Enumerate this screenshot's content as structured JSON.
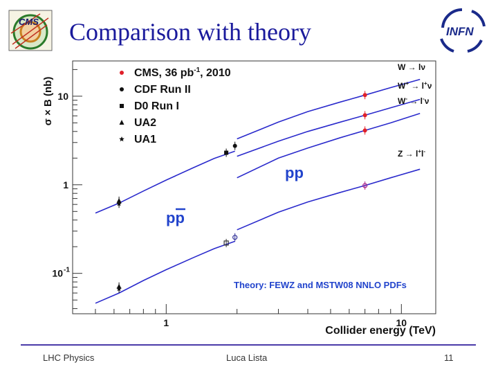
{
  "slide": {
    "title": "Comparison with theory",
    "footer_left": "LHC Physics",
    "footer_center": "Luca Lista",
    "footer_right": "11"
  },
  "logos": {
    "left": {
      "name": "cms-logo",
      "text": "CMS"
    },
    "right": {
      "name": "infn-logo",
      "text": "INFN"
    }
  },
  "colors": {
    "title": "#1a1a9c",
    "theory_curve": "#2a2acc",
    "cms_points": "#e0202a",
    "annotation_blue": "#2244cc",
    "footer_line": "#4a3aa8"
  },
  "chart_data": {
    "type": "scatter",
    "xlabel": "Collider energy (TeV)",
    "ylabel": "σ × B (nb)",
    "x_scale": "log",
    "y_scale": "log",
    "xlim": [
      0.4,
      14
    ],
    "ylim": [
      0.035,
      25
    ],
    "x_tick_labels": [
      {
        "value": 1,
        "label": "1"
      },
      {
        "value": 10,
        "label": "10"
      }
    ],
    "y_tick_labels": [
      {
        "value": 0.1,
        "label": "10",
        "sup": "-1"
      },
      {
        "value": 1,
        "label": "1"
      },
      {
        "value": 10,
        "label": "10"
      }
    ],
    "legend": [
      {
        "label": "CMS, 36 pb",
        "sup": "-1",
        "suffix": ", 2010",
        "marker": "dot",
        "color": "#e0202a"
      },
      {
        "label": "CDF Run II",
        "marker": "dot",
        "color": "#111111"
      },
      {
        "label": "D0 Run I",
        "marker": "square",
        "color": "#111111"
      },
      {
        "label": "UA2",
        "marker": "triangle",
        "color": "#111111"
      },
      {
        "label": "UA1",
        "marker": "star",
        "color": "#111111"
      }
    ],
    "theory_note": "Theory: FEWZ and MSTW08 NNLO PDFs",
    "region_labels": [
      {
        "label": "pp",
        "anti": false
      },
      {
        "label": "pp",
        "anti": true
      }
    ],
    "curve_labels": [
      {
        "name": "W → lν",
        "base": "W → lν",
        "sup": ""
      },
      {
        "name": "W+ → l+ν",
        "base": "W",
        "sup": "+",
        "rest": " → l",
        "sup2": "+",
        "rest2": "ν"
      },
      {
        "name": "W- → l-ν",
        "base": "W",
        "sup": "-",
        "rest": " → l",
        "sup2": "-",
        "rest2": "ν"
      },
      {
        "name": "Z → l+l-",
        "base": "Z → l",
        "sup": "+",
        "rest": "l",
        "sup2": "-",
        "rest2": ""
      }
    ],
    "theory_series": [
      {
        "name": "W → lν (pp̄)",
        "x": [
          0.5,
          0.63,
          0.8,
          1.0,
          1.3,
          1.6,
          1.96
        ],
        "y": [
          0.48,
          0.62,
          0.85,
          1.13,
          1.55,
          1.98,
          2.4
        ]
      },
      {
        "name": "W → lν (pp)",
        "x": [
          2.0,
          3.0,
          4.0,
          5.5,
          7.0,
          9.0,
          12.0
        ],
        "y": [
          3.3,
          5.1,
          6.7,
          8.6,
          10.3,
          12.5,
          15.5
        ]
      },
      {
        "name": "W+ → l+ν (pp)",
        "x": [
          2.0,
          3.0,
          4.0,
          5.5,
          7.0,
          9.0,
          12.0
        ],
        "y": [
          2.1,
          3.1,
          4.0,
          5.1,
          6.1,
          7.4,
          9.2
        ]
      },
      {
        "name": "W- → l-ν (pp)",
        "x": [
          2.0,
          3.0,
          4.0,
          5.5,
          7.0,
          9.0,
          12.0
        ],
        "y": [
          1.2,
          2.0,
          2.6,
          3.4,
          4.1,
          5.0,
          6.4
        ]
      },
      {
        "name": "Z → l+l- (pp̄)",
        "x": [
          0.5,
          0.63,
          0.8,
          1.0,
          1.3,
          1.6,
          1.96
        ],
        "y": [
          0.046,
          0.06,
          0.083,
          0.11,
          0.15,
          0.19,
          0.23
        ]
      },
      {
        "name": "Z → l+l- (pp)",
        "x": [
          2.0,
          3.0,
          4.0,
          5.5,
          7.0,
          9.0,
          12.0
        ],
        "y": [
          0.31,
          0.49,
          0.64,
          0.82,
          0.98,
          1.2,
          1.5
        ]
      }
    ],
    "measurements": [
      {
        "experiment": "CMS, 36 pb-1, 2010",
        "channel": "W → lν",
        "marker": "dot",
        "x": 7.0,
        "y": 10.3,
        "color": "#e0202a"
      },
      {
        "experiment": "CMS, 36 pb-1, 2010",
        "channel": "W+ → l+ν",
        "marker": "dot",
        "x": 7.0,
        "y": 6.1,
        "color": "#e0202a"
      },
      {
        "experiment": "CMS, 36 pb-1, 2010",
        "channel": "W- → l-ν",
        "marker": "dot",
        "x": 7.0,
        "y": 4.1,
        "color": "#e0202a"
      },
      {
        "experiment": "CMS, 36 pb-1, 2010",
        "channel": "Z → l+l-",
        "marker": "open-circle",
        "x": 7.0,
        "y": 0.98,
        "color": "#aa2288"
      },
      {
        "experiment": "CDF Run II",
        "channel": "W → lν",
        "marker": "dot",
        "x": 1.96,
        "y": 2.75,
        "color": "#111111"
      },
      {
        "experiment": "CDF Run II",
        "channel": "Z → l+l-",
        "marker": "open-circle",
        "x": 1.96,
        "y": 0.255,
        "color": "#333399"
      },
      {
        "experiment": "D0 Run I",
        "channel": "W → lν",
        "marker": "square",
        "x": 1.8,
        "y": 2.3,
        "color": "#111111"
      },
      {
        "experiment": "D0 Run I",
        "channel": "Z → l+l-",
        "marker": "open-square",
        "x": 1.8,
        "y": 0.22,
        "color": "#333333"
      },
      {
        "experiment": "UA2",
        "channel": "W → lν",
        "marker": "triangle",
        "x": 0.63,
        "y": 0.66,
        "color": "#111111"
      },
      {
        "experiment": "UA2",
        "channel": "Z → l+l-",
        "marker": "triangle",
        "x": 0.63,
        "y": 0.071,
        "color": "#111111"
      },
      {
        "experiment": "UA1",
        "channel": "W → lν",
        "marker": "star",
        "x": 0.63,
        "y": 0.61,
        "color": "#111111"
      },
      {
        "experiment": "UA1",
        "channel": "Z → l+l-",
        "marker": "star",
        "x": 0.63,
        "y": 0.067,
        "color": "#111111"
      }
    ]
  }
}
